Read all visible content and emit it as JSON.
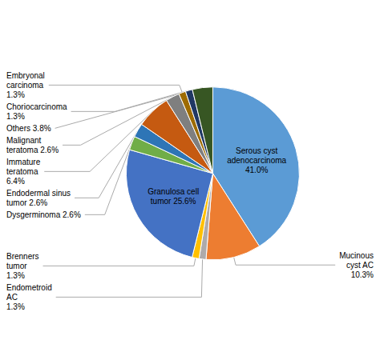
{
  "chart_data": {
    "type": "pie",
    "categories": [
      "Serous cyst\nadenocarcinoma\n41.0%",
      "Mucinous\ncyst AC\n10.3%",
      "Endometroid\nAC\n1.3%",
      "Brenners\ntumor\n1.3%",
      "Granulosa cell\ntumor 25.6%",
      "Dysgerminoma 2.6%",
      "Endodermal sinus\ntumor 2.6%",
      "Immature\nteratoma\n6.4%",
      "Malignant\nteratoma 2.6%",
      "Embryonal\ncarcinoma\n1.3%",
      "Choriocarcinoma\n1.3%",
      "Others 3.8%"
    ],
    "values": [
      41.0,
      10.3,
      1.3,
      1.3,
      25.6,
      2.6,
      2.6,
      6.4,
      2.6,
      1.3,
      1.3,
      3.8
    ],
    "colors": [
      "#5B9BD5",
      "#ED7D31",
      "#AEAAAA",
      "#FFC000",
      "#4472C4",
      "#70AD47",
      "#2E75B6",
      "#C55A11",
      "#7F7F7F",
      "#9E6B00",
      "#203864",
      "#375623"
    ]
  }
}
